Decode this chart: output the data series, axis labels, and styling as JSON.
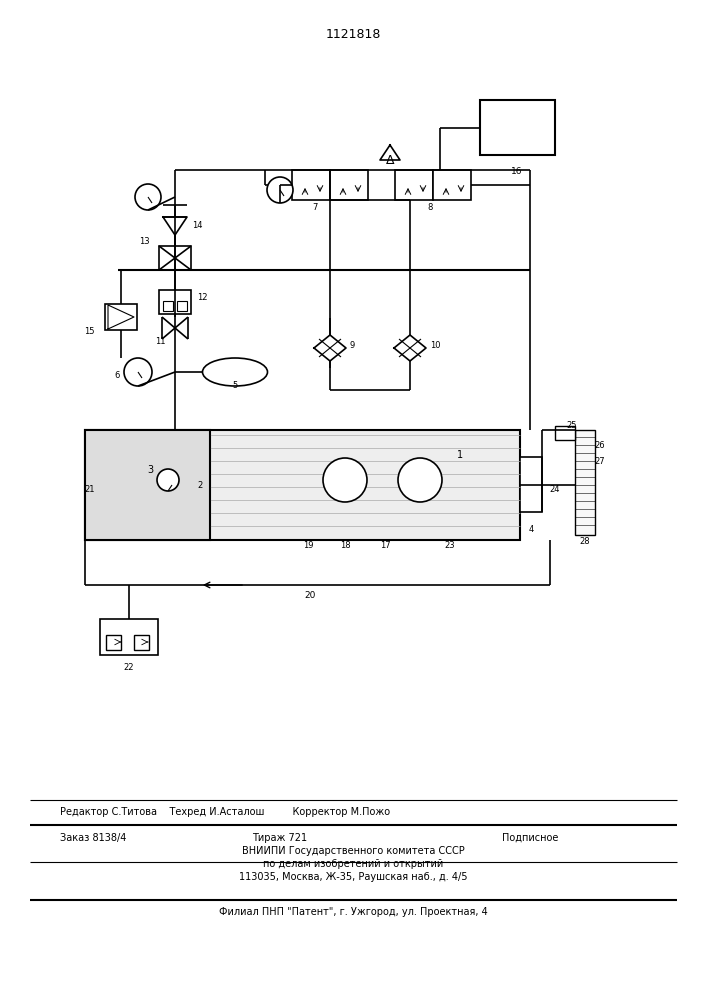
{
  "title": "1121818",
  "bg_color": "#ffffff",
  "line_color": "#000000",
  "footer_line1": "Редактор С.Титова    Техред И.Асталош         Корректор М.Пожо",
  "footer_line2a": "Заказ 8138/4",
  "footer_line2b": "Тираж 721",
  "footer_line2c": "Подписное",
  "footer_line3": "ВНИИПИ Государственного комитета СССР",
  "footer_line4": "по делам изобретений и открытий",
  "footer_line5": "113035, Москва, Ж-35, Раушская наб., д. 4/5",
  "footer_line6": "Филиал ПНП \"Патент\", г. Ужгород, ул. Проектная, 4"
}
